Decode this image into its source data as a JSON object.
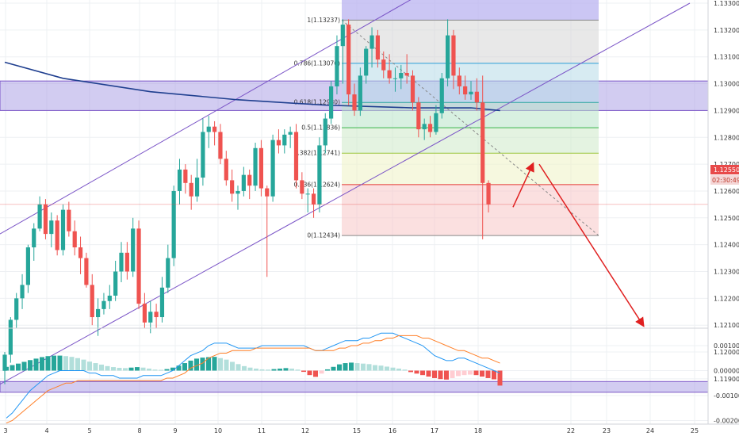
{
  "colors": {
    "up": "#26a69a",
    "down": "#ef5350",
    "ma": "#1f3f8f",
    "channel": "#7b55c7",
    "zone": "#9b8fe0",
    "forecast": "#e02020",
    "macd": "#2196f3",
    "signal": "#ff7f27",
    "price_badge": "#e84a4a"
  },
  "chart_data": [
    {
      "type": "candlestick",
      "title": "",
      "x_tick_labels": [
        "3",
        "4",
        "5",
        "8",
        "9",
        "10",
        "11",
        "12",
        "15",
        "16",
        "17",
        "18",
        "22",
        "23",
        "24",
        "25"
      ],
      "y_tick_labels": [
        "1.13300",
        "1.13200",
        "1.13100",
        "1.13000",
        "1.12900",
        "1.12800",
        "1.12700",
        "1.12600",
        "1.12500",
        "1.12400",
        "1.12300",
        "1.12200",
        "1.12100",
        "1.12000",
        "1.11900"
      ],
      "ylim": [
        1.1184,
        1.1332
      ],
      "current_price": "1.12550",
      "countdown": "02:30:49",
      "candles_ohlc": [
        [
          1.1193,
          1.12,
          1.1188,
          1.1199
        ],
        [
          1.1199,
          1.1213,
          1.1196,
          1.1212
        ],
        [
          1.1212,
          1.1222,
          1.1209,
          1.122
        ],
        [
          1.122,
          1.1229,
          1.1216,
          1.1225
        ],
        [
          1.1225,
          1.124,
          1.1222,
          1.1239
        ],
        [
          1.1239,
          1.1248,
          1.1234,
          1.1246
        ],
        [
          1.1246,
          1.1258,
          1.1245,
          1.1255
        ],
        [
          1.1255,
          1.1257,
          1.1242,
          1.1244
        ],
        [
          1.1244,
          1.1252,
          1.1239,
          1.1249
        ],
        [
          1.1249,
          1.1251,
          1.1236,
          1.1238
        ],
        [
          1.1238,
          1.1255,
          1.1236,
          1.1253
        ],
        [
          1.1253,
          1.1256,
          1.1243,
          1.1245
        ],
        [
          1.1245,
          1.1249,
          1.1236,
          1.1239
        ],
        [
          1.1239,
          1.1243,
          1.1229,
          1.1235
        ],
        [
          1.1235,
          1.1237,
          1.1224,
          1.1225
        ],
        [
          1.1225,
          1.1229,
          1.121,
          1.1213
        ],
        [
          1.1213,
          1.122,
          1.1206,
          1.1216
        ],
        [
          1.1216,
          1.1222,
          1.1214,
          1.1219
        ],
        [
          1.1219,
          1.1225,
          1.1216,
          1.1221
        ],
        [
          1.1221,
          1.1234,
          1.1219,
          1.123
        ],
        [
          1.123,
          1.1241,
          1.1226,
          1.1237
        ],
        [
          1.1237,
          1.1241,
          1.1227,
          1.123
        ],
        [
          1.123,
          1.125,
          1.1228,
          1.1246
        ],
        [
          1.1246,
          1.1249,
          1.1216,
          1.1218
        ],
        [
          1.1218,
          1.1222,
          1.1209,
          1.1211
        ],
        [
          1.1211,
          1.1219,
          1.1207,
          1.1215
        ],
        [
          1.1215,
          1.1218,
          1.1209,
          1.1213
        ],
        [
          1.1213,
          1.1228,
          1.1211,
          1.1224
        ],
        [
          1.1224,
          1.124,
          1.1222,
          1.1235
        ],
        [
          1.1235,
          1.1262,
          1.1232,
          1.126
        ],
        [
          1.126,
          1.1272,
          1.1255,
          1.1268
        ],
        [
          1.1268,
          1.127,
          1.1259,
          1.1263
        ],
        [
          1.1263,
          1.1266,
          1.1253,
          1.1258
        ],
        [
          1.1258,
          1.1272,
          1.1256,
          1.1265
        ],
        [
          1.1265,
          1.1287,
          1.1262,
          1.1282
        ],
        [
          1.1282,
          1.1288,
          1.1276,
          1.1284
        ],
        [
          1.1284,
          1.1286,
          1.1277,
          1.1282
        ],
        [
          1.1282,
          1.1285,
          1.127,
          1.1272
        ],
        [
          1.1272,
          1.1275,
          1.1262,
          1.1264
        ],
        [
          1.1264,
          1.1268,
          1.1256,
          1.1259
        ],
        [
          1.1259,
          1.1262,
          1.1253,
          1.126
        ],
        [
          1.126,
          1.1269,
          1.1258,
          1.1266
        ],
        [
          1.1266,
          1.1268,
          1.1257,
          1.1262
        ],
        [
          1.1262,
          1.1278,
          1.126,
          1.1276
        ],
        [
          1.1276,
          1.1279,
          1.1258,
          1.1261
        ],
        [
          1.1261,
          1.1262,
          1.1228,
          1.1258
        ],
        [
          1.1258,
          1.1281,
          1.1256,
          1.1279
        ],
        [
          1.1279,
          1.1283,
          1.1274,
          1.1277
        ],
        [
          1.1277,
          1.1283,
          1.1274,
          1.1281
        ],
        [
          1.1281,
          1.1284,
          1.1276,
          1.1282
        ],
        [
          1.1282,
          1.1285,
          1.1261,
          1.1264
        ],
        [
          1.1264,
          1.1267,
          1.1257,
          1.1259
        ],
        [
          1.1259,
          1.1261,
          1.1252,
          1.1259
        ],
        [
          1.1259,
          1.1261,
          1.125,
          1.1255
        ],
        [
          1.1255,
          1.128,
          1.1252,
          1.1277
        ],
        [
          1.1277,
          1.1289,
          1.1274,
          1.1287
        ],
        [
          1.1287,
          1.1301,
          1.1285,
          1.1299
        ],
        [
          1.1299,
          1.1318,
          1.1296,
          1.1314
        ],
        [
          1.1314,
          1.1324,
          1.13,
          1.1322
        ],
        [
          1.1322,
          1.1324,
          1.1292,
          1.1296
        ],
        [
          1.1296,
          1.13,
          1.1288,
          1.129
        ],
        [
          1.129,
          1.1306,
          1.1288,
          1.1303
        ],
        [
          1.1303,
          1.1314,
          1.13,
          1.1313
        ],
        [
          1.1313,
          1.1321,
          1.1306,
          1.1318
        ],
        [
          1.1318,
          1.132,
          1.1306,
          1.1309
        ],
        [
          1.1309,
          1.1312,
          1.1302,
          1.1305
        ],
        [
          1.1305,
          1.1311,
          1.13,
          1.1302
        ],
        [
          1.1302,
          1.1306,
          1.1297,
          1.1302
        ],
        [
          1.1302,
          1.1307,
          1.1298,
          1.1304
        ],
        [
          1.1304,
          1.1311,
          1.13,
          1.1303
        ],
        [
          1.1303,
          1.1305,
          1.129,
          1.1293
        ],
        [
          1.1293,
          1.1295,
          1.128,
          1.1283
        ],
        [
          1.1283,
          1.1287,
          1.1279,
          1.1285
        ],
        [
          1.1285,
          1.1288,
          1.128,
          1.1282
        ],
        [
          1.1282,
          1.1292,
          1.1281,
          1.1289
        ],
        [
          1.1289,
          1.1304,
          1.1287,
          1.1302
        ],
        [
          1.1302,
          1.1324,
          1.1299,
          1.1318
        ],
        [
          1.1318,
          1.132,
          1.1298,
          1.1303
        ],
        [
          1.1303,
          1.1306,
          1.1296,
          1.1299
        ],
        [
          1.1299,
          1.1303,
          1.1294,
          1.1296
        ],
        [
          1.1296,
          1.1301,
          1.1294,
          1.1297
        ],
        [
          1.1297,
          1.1302,
          1.129,
          1.1293
        ],
        [
          1.1293,
          1.1303,
          1.1242,
          1.1263
        ],
        [
          1.1263,
          1.1264,
          1.1252,
          1.1255
        ]
      ],
      "moving_average": [
        [
          0,
          1.1308
        ],
        [
          10,
          1.1302
        ],
        [
          25,
          1.1297
        ],
        [
          40,
          1.1294
        ],
        [
          55,
          1.1292
        ],
        [
          70,
          1.1291
        ],
        [
          80,
          1.1291
        ],
        [
          85,
          1.129
        ]
      ],
      "fibonacci": {
        "levels": [
          {
            "label": "1(1.13237)",
            "price": 1.13237
          },
          {
            "label": "0.786(1.13076)",
            "price": 1.13076
          },
          {
            "label": "0.618(1.12930)",
            "price": 1.1293
          },
          {
            "label": "0.5(1.12836)",
            "price": 1.12836
          },
          {
            "label": "0.382(1.12741)",
            "price": 1.12741
          },
          {
            "label": "0.236(1.12624)",
            "price": 1.12624
          },
          {
            "label": "0(1.12434)",
            "price": 1.12434
          }
        ],
        "band_colors": [
          "#d6d6d6",
          "#b7dbe8",
          "#b8e3c8",
          "#cdeac9",
          "#eff3c4",
          "#f7c6c6"
        ]
      }
    },
    {
      "type": "bar",
      "title": "",
      "y_tick_labels": [
        "0.00100",
        "0.00000",
        "-0.00100",
        "-0.00200"
      ],
      "ylim": [
        -0.0022,
        0.0014
      ],
      "histogram": [
        0.00015,
        0.00022,
        0.00028,
        0.00035,
        0.00042,
        0.00048,
        0.00054,
        0.00058,
        0.0006,
        0.0006,
        0.00058,
        0.00055,
        0.0005,
        0.00044,
        0.00036,
        0.0003,
        0.00024,
        0.00018,
        0.00014,
        0.00011,
        0.0001,
        0.00012,
        0.00014,
        0.00012,
        8e-05,
        4e-05,
        3e-05,
        6e-05,
        0.00012,
        0.0002,
        0.0003,
        0.0004,
        0.00048,
        0.00052,
        0.00054,
        0.00055,
        0.0005,
        0.00044,
        0.00035,
        0.00026,
        0.00018,
        0.00012,
        8e-05,
        5e-05,
        4e-05,
        6e-05,
        8e-05,
        0.0001,
        8e-05,
        4e-05,
        -5e-05,
        -0.00018,
        -0.00025,
        -0.00012,
        5e-05,
        0.00015,
        0.00025,
        0.0003,
        0.00032,
        0.0003,
        0.00028,
        0.00026,
        0.00022,
        0.0002,
        0.00016,
        0.00012,
        8e-05,
        4e-05,
        -6e-05,
        -0.00012,
        -0.00018,
        -0.00024,
        -0.0003,
        -0.00034,
        -0.00036,
        -0.0003,
        -0.00022,
        -0.00018,
        -0.00016,
        -0.00018,
        -0.00024,
        -0.0003,
        -0.00035,
        -0.0006
      ],
      "macd_line": [
        -0.0019,
        -0.0017,
        -0.0014,
        -0.0011,
        -0.0008,
        -0.0006,
        -0.0004,
        -0.0002,
        -0.0001,
        0.0,
        0.0,
        0.0,
        0.0,
        0.0,
        -0.0001,
        -0.0001,
        -0.0002,
        -0.0002,
        -0.0002,
        -0.0003,
        -0.0003,
        -0.0003,
        -0.0003,
        -0.0002,
        -0.0002,
        -0.0002,
        -0.0002,
        -0.0001,
        0.0,
        0.0002,
        0.0004,
        0.0006,
        0.0007,
        0.0008,
        0.001,
        0.0011,
        0.0011,
        0.0011,
        0.001,
        0.0009,
        0.0009,
        0.0009,
        0.0009,
        0.001,
        0.001,
        0.001,
        0.001,
        0.001,
        0.001,
        0.001,
        0.001,
        0.0009,
        0.0008,
        0.0008,
        0.0009,
        0.001,
        0.0011,
        0.0012,
        0.0012,
        0.0012,
        0.0013,
        0.0013,
        0.0014,
        0.0015,
        0.0015,
        0.0015,
        0.0014,
        0.0013,
        0.0012,
        0.0011,
        0.001,
        0.0008,
        0.0006,
        0.0005,
        0.0004,
        0.0004,
        0.0005,
        0.0005,
        0.0004,
        0.0003,
        0.0002,
        0.0001,
        0.0,
        -0.0001
      ],
      "signal_line": [
        -0.0021,
        -0.002,
        -0.0018,
        -0.0016,
        -0.0014,
        -0.0012,
        -0.001,
        -0.0008,
        -0.0007,
        -0.0006,
        -0.0005,
        -0.0005,
        -0.0004,
        -0.0004,
        -0.0004,
        -0.0004,
        -0.0004,
        -0.0004,
        -0.0004,
        -0.0004,
        -0.0004,
        -0.0004,
        -0.0004,
        -0.0004,
        -0.0004,
        -0.0004,
        -0.0004,
        -0.0003,
        -0.0003,
        -0.0002,
        -0.0001,
        0.0001,
        0.0002,
        0.0003,
        0.0005,
        0.0006,
        0.0007,
        0.0007,
        0.0008,
        0.0008,
        0.0008,
        0.0008,
        0.0009,
        0.0009,
        0.0009,
        0.0009,
        0.0009,
        0.0009,
        0.0009,
        0.0009,
        0.0009,
        0.0009,
        0.0008,
        0.0008,
        0.0008,
        0.0008,
        0.0009,
        0.0009,
        0.001,
        0.001,
        0.0011,
        0.0011,
        0.0012,
        0.0012,
        0.0013,
        0.0013,
        0.0014,
        0.0014,
        0.0014,
        0.0014,
        0.0013,
        0.0013,
        0.0012,
        0.0011,
        0.001,
        0.0009,
        0.0008,
        0.0008,
        0.0007,
        0.0006,
        0.0005,
        0.0005,
        0.0004,
        0.0003
      ]
    }
  ]
}
